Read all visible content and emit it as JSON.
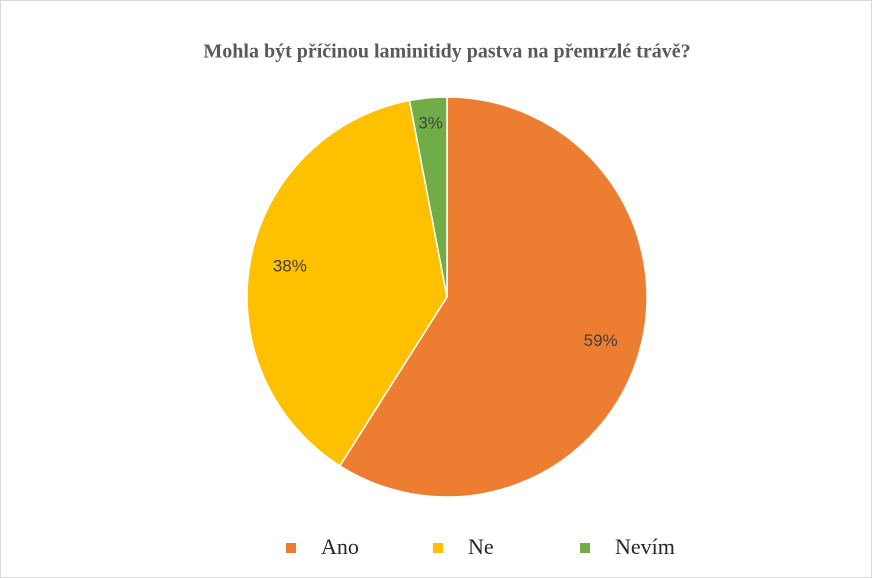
{
  "chart_data": {
    "type": "pie",
    "title": "Mohla být příčinou laminitidy pastva na přemrzlé trávě?",
    "categories": [
      "Ano",
      "Ne",
      "Nevím"
    ],
    "values": [
      59,
      38,
      3
    ],
    "value_labels": [
      "59%",
      "38%",
      "3%"
    ],
    "colors": [
      "#ED7D31",
      "#FFC000",
      "#70AD47"
    ],
    "legend": "bottom"
  }
}
